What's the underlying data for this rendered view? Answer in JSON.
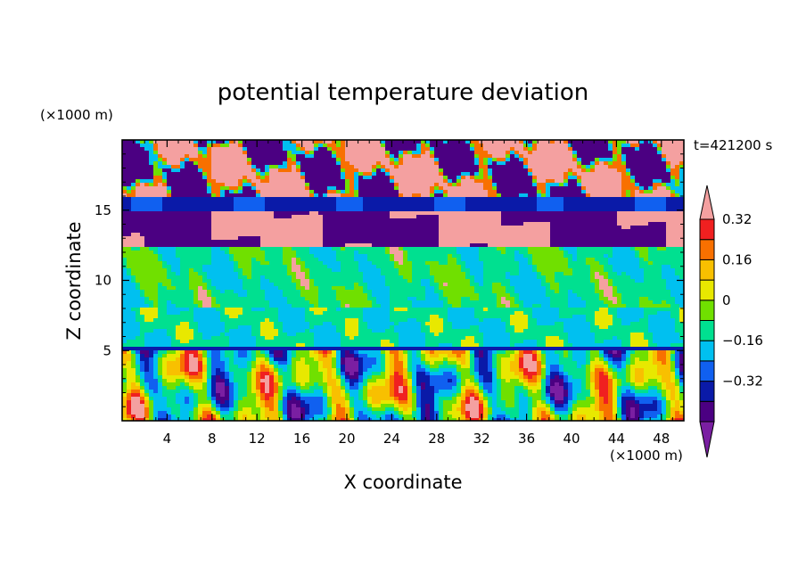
{
  "chart_data": {
    "type": "heatmap",
    "title": "potential temperature deviation",
    "xlabel": "X coordinate",
    "ylabel": "Z coordinate",
    "x_unit": "(×1000 m)",
    "y_unit": "(×1000 m)",
    "time_label": "t=421200 s",
    "xlim": [
      0,
      50
    ],
    "ylim": [
      0,
      20
    ],
    "x_ticks": [
      4,
      8,
      12,
      16,
      20,
      24,
      28,
      32,
      36,
      40,
      44,
      48
    ],
    "y_ticks": [
      5,
      10,
      15
    ],
    "colorbar": {
      "levels": [
        -0.48,
        -0.4,
        -0.32,
        -0.24,
        -0.16,
        -0.08,
        0,
        0.08,
        0.16,
        0.24,
        0.32,
        0.4
      ],
      "tick_labels": [
        "0.32",
        "0.16",
        "0",
        "−0.16",
        "−0.32"
      ],
      "colors": [
        "#7a1fa2",
        "#4b0082",
        "#0a1aa8",
        "#1060f0",
        "#00c0f0",
        "#00e090",
        "#70e000",
        "#e8e800",
        "#f8c000",
        "#f87000",
        "#f02020",
        "#f4a0a0"
      ],
      "extend": "both"
    },
    "bands": [
      {
        "z": [
          0,
          5
        ],
        "pattern": "turbulent mix, full color range"
      },
      {
        "z": [
          5,
          8
        ],
        "pattern": "cyan / green"
      },
      {
        "z": [
          8,
          12.5
        ],
        "pattern": "green / light green with pink patches"
      },
      {
        "z": [
          12.5,
          15
        ],
        "pattern": "pink and purple"
      },
      {
        "z": [
          15,
          16
        ],
        "pattern": "dark blue strip"
      },
      {
        "z": [
          16,
          20
        ],
        "pattern": "pink and purple mix"
      }
    ]
  }
}
